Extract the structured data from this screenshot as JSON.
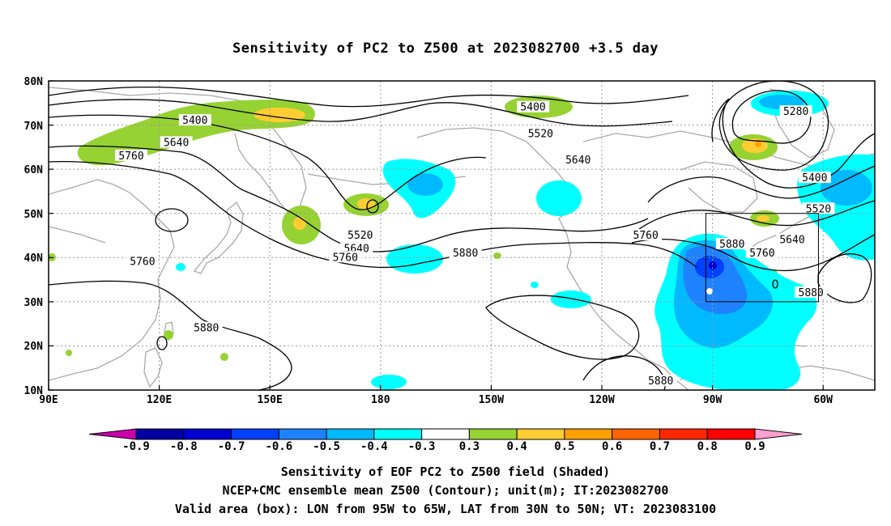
{
  "title": "Sensitivity of PC2 to Z500 at 2023082700 +3.5 day",
  "colors": {
    "sensitivity": [
      "#cc00aa",
      "#0000a0",
      "#0000d0",
      "#0040ff",
      "#1e82ff",
      "#00baff",
      "#00ffff",
      "#ffffff",
      "#96d232",
      "#ffcd32",
      "#ffa000",
      "#ff6400",
      "#ff2800",
      "#ff0000",
      "#ffa0d2"
    ],
    "coastline": "#a8a8a8",
    "contour": "#000000",
    "grid": "#999999"
  },
  "lat_labels": [
    "80N",
    "70N",
    "60N",
    "50N",
    "40N",
    "30N",
    "20N",
    "10N"
  ],
  "lon_labels": [
    "90E",
    "120E",
    "150E",
    "180",
    "150W",
    "120W",
    "90W",
    "60W"
  ],
  "contour_labels": [
    "5400",
    "5280",
    "5520",
    "5640",
    "5760",
    "5880"
  ],
  "contour_label_instances": [
    {
      "text": "5400",
      "lon": 129,
      "lat": 71
    },
    {
      "text": "5640",
      "lon": 124,
      "lat": 66
    },
    {
      "text": "5760",
      "lon": 112,
      "lat": 63
    },
    {
      "text": "5400",
      "lon": -141,
      "lat": 74
    },
    {
      "text": "5520",
      "lon": -139,
      "lat": 68
    },
    {
      "text": "5640",
      "lon": -129,
      "lat": 62
    },
    {
      "text": "5280",
      "lon": -71,
      "lat": 73
    },
    {
      "text": "5400",
      "lon": -66,
      "lat": 58
    },
    {
      "text": "5520",
      "lon": -65,
      "lat": 51
    },
    {
      "text": "5640",
      "lon": -72,
      "lat": 44
    },
    {
      "text": "5760",
      "lon": -80,
      "lat": 41
    },
    {
      "text": "5880",
      "lon": -67,
      "lat": 32
    },
    {
      "text": "5880",
      "lon": -88,
      "lat": 43
    },
    {
      "text": "5760",
      "lon": -111,
      "lat": 45
    },
    {
      "text": "5880",
      "lon": -159,
      "lat": 41
    },
    {
      "text": "5520",
      "lon": 173,
      "lat": 45
    },
    {
      "text": "5640",
      "lon": 172,
      "lat": 42
    },
    {
      "text": "5760",
      "lon": 169,
      "lat": 40
    },
    {
      "text": "5760",
      "lon": 115,
      "lat": 39
    },
    {
      "text": "5880",
      "lon": 132,
      "lat": 24
    },
    {
      "text": "5880",
      "lon": -107,
      "lat": 12
    }
  ],
  "colorbar": {
    "labels": [
      "-0.9",
      "-0.8",
      "-0.7",
      "-0.6",
      "-0.5",
      "-0.4",
      "-0.3",
      "0.3",
      "0.4",
      "0.5",
      "0.6",
      "0.7",
      "0.8",
      "0.9"
    ]
  },
  "valid_box": {
    "lon_min": -95,
    "lon_max": -65,
    "lat_min": 30,
    "lat_max": 50
  },
  "caption": {
    "line1": "Sensitivity of EOF PC2 to Z500 field (Shaded)",
    "line2": "NCEP+CMC ensemble mean Z500 (Contour); unit(m); IT:2023082700",
    "line3": "Valid area (box): LON from 95W to 65W, LAT from 30N to 50N; VT: 2023083100"
  }
}
